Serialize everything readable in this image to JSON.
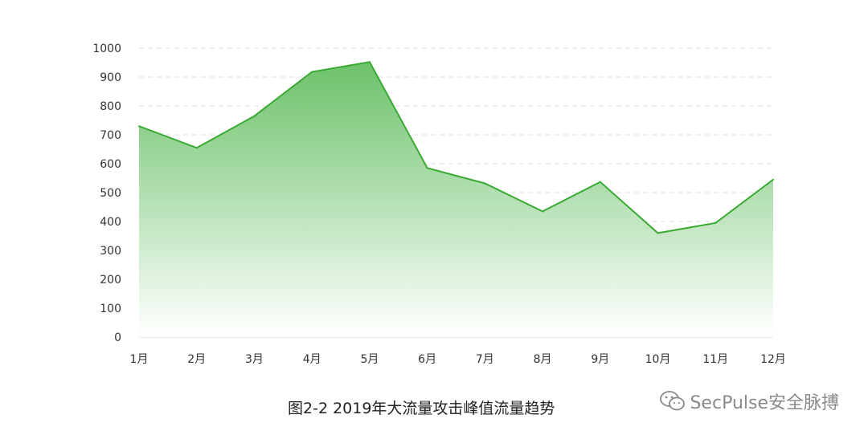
{
  "chart_data": {
    "type": "area",
    "categories": [
      "1月",
      "2月",
      "3月",
      "4月",
      "5月",
      "6月",
      "7月",
      "8月",
      "9月",
      "10月",
      "11月",
      "12月"
    ],
    "series": [
      {
        "values": [
          730,
          655,
          765,
          918,
          952,
          585,
          532,
          435,
          537,
          360,
          395,
          545
        ]
      }
    ],
    "yticks": [
      0,
      100,
      200,
      300,
      400,
      500,
      600,
      700,
      800,
      900,
      1000
    ],
    "ylim": [
      0,
      1000
    ],
    "grid": true,
    "grid_style": "dashed",
    "colors": {
      "line": "#3aaa35",
      "fill_top": "#6cc26a",
      "fill_bottom": "#ffffff"
    }
  },
  "caption": "图2-2  2019年大流量攻击峰值流量趋势",
  "watermark": {
    "text": "SecPulse安全脉搏",
    "icon": "wechat-icon"
  }
}
